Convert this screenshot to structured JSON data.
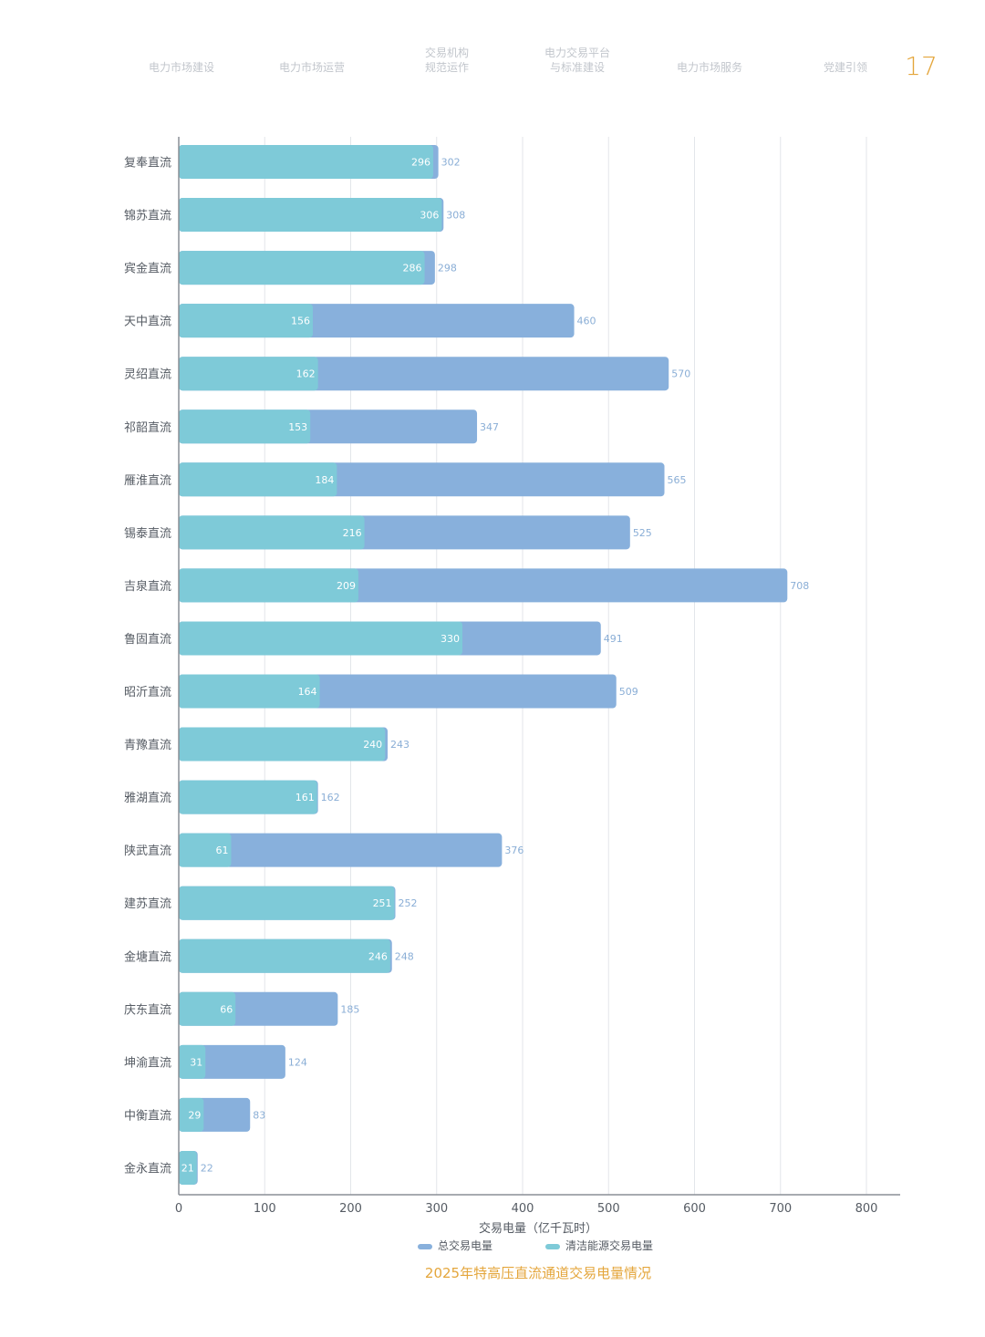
{
  "nav": {
    "items": [
      {
        "label": "电力市场建设"
      },
      {
        "label": "电力市场运营"
      },
      {
        "label": "交易机构\n规范运作"
      },
      {
        "label": "电力交易平台\n与标准建设"
      },
      {
        "label": "电力市场服务"
      },
      {
        "label": "党建引领"
      }
    ],
    "page_number": "17"
  },
  "colors": {
    "total": "#88b0dc",
    "clean": "#7ecad8",
    "grid": "#e3e6ea",
    "axis": "#8a8f96",
    "title": "#e4a63c"
  },
  "chart_data": {
    "type": "bar",
    "orientation": "horizontal",
    "title": "2025年特高压直流通道交易电量情况",
    "xlabel": "交易电量（亿千瓦时）",
    "ylabel": "",
    "xlim": [
      0,
      800
    ],
    "x_ticks": [
      0,
      100,
      200,
      300,
      400,
      500,
      600,
      700,
      800
    ],
    "grid": true,
    "legend_position": "bottom",
    "categories": [
      "复奉直流",
      "锦苏直流",
      "宾金直流",
      "天中直流",
      "灵绍直流",
      "祁韶直流",
      "雁淮直流",
      "锡泰直流",
      "吉泉直流",
      "鲁固直流",
      "昭沂直流",
      "青豫直流",
      "雅湖直流",
      "陕武直流",
      "建苏直流",
      "金塘直流",
      "庆东直流",
      "坤渝直流",
      "中衡直流",
      "金永直流"
    ],
    "series": [
      {
        "name": "总交易电量",
        "values": [
          302,
          308,
          298,
          460,
          570,
          347,
          565,
          525,
          708,
          491,
          509,
          243,
          162,
          376,
          252,
          248,
          185,
          124,
          83,
          22
        ]
      },
      {
        "name": "清洁能源交易电量",
        "values": [
          296,
          306,
          286,
          156,
          162,
          153,
          184,
          216,
          209,
          330,
          164,
          240,
          161,
          61,
          251,
          246,
          66,
          31,
          29,
          21
        ]
      }
    ]
  }
}
